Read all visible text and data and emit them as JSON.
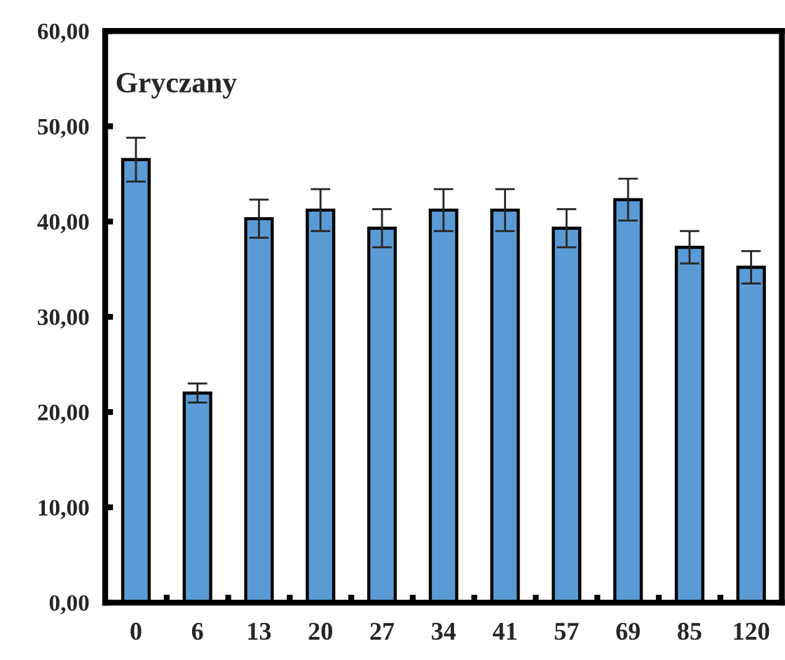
{
  "chart_data": {
    "type": "bar",
    "title": "Gryczany",
    "categories": [
      "0",
      "6",
      "13",
      "20",
      "27",
      "34",
      "41",
      "57",
      "69",
      "85",
      "120"
    ],
    "values": [
      46.5,
      22.0,
      40.3,
      41.2,
      39.3,
      41.2,
      41.2,
      39.3,
      42.3,
      37.3,
      35.2
    ],
    "errors": [
      2.3,
      1.0,
      2.0,
      2.2,
      2.0,
      2.2,
      2.2,
      2.0,
      2.2,
      1.7,
      1.7
    ],
    "color": "#5b9bd5",
    "ylim": [
      0,
      60
    ],
    "yticks": [
      {
        "value": 0,
        "label": "0,00"
      },
      {
        "value": 10,
        "label": "10,00"
      },
      {
        "value": 20,
        "label": "20,00"
      },
      {
        "value": 30,
        "label": "30,00"
      },
      {
        "value": 40,
        "label": "40,00"
      },
      {
        "value": 50,
        "label": "50,00"
      },
      {
        "value": 60,
        "label": "60,00"
      }
    ]
  }
}
